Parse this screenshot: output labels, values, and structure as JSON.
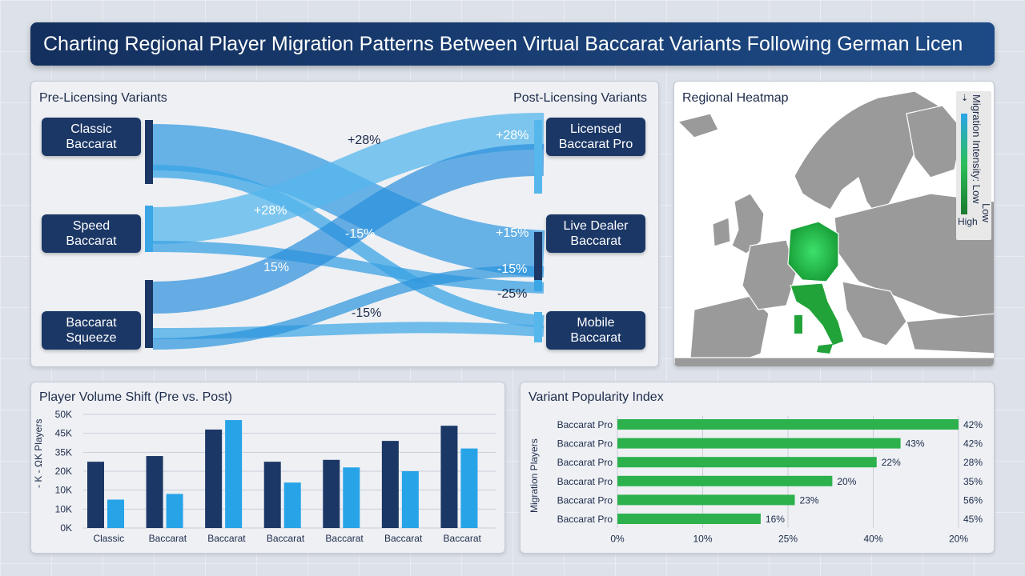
{
  "header": {
    "title": "Charting Regional Player Migration Patterns Between Virtual Baccarat Variants Following German Licen"
  },
  "sankey": {
    "left_title": "Pre-Licensing Variants",
    "right_title": "Post-Licensing Variants",
    "left_nodes": [
      "Classic\nBaccarat",
      "Speed\nBaccarat",
      "Baccarat\nSqueeze"
    ],
    "right_nodes": [
      "Licensed\nBaccarat Pro",
      "Live Dealer\nBaccarat",
      "Mobile\nBaccarat"
    ],
    "flow_labels": [
      "+28%",
      "+28%",
      "+28%",
      "-15%",
      "+15%",
      "15%",
      "-15%",
      "-25%",
      "-15%"
    ]
  },
  "heatmap": {
    "title": "Regional Heatmap",
    "legend_label": "Migration Intensity: Low",
    "legend_low": "Low",
    "legend_high": "High",
    "colors": {
      "low": "#2e9e3e",
      "high": "#2aa4e8",
      "highlight": "#21b33f",
      "land": "#9a9a9a",
      "sea": "#ffffff"
    }
  },
  "chart_data": [
    {
      "type": "bar",
      "title": "Player Volume Shift (Pre vs. Post)",
      "ylabel": "- K - ΩK Players",
      "categories": [
        "Classic",
        "Baccarat",
        "Baccarat",
        "Baccarat",
        "Baccarat",
        "Baccarat",
        "Baccarat"
      ],
      "yticks": [
        "50K",
        "45K",
        "35K",
        "20K",
        "10K",
        "10K",
        "0K"
      ],
      "ylim": [
        0,
        6
      ],
      "series": [
        {
          "values": [
            3.5,
            3.8,
            5.2,
            3.5,
            3.6,
            4.6,
            5.4
          ],
          "color": "#1b3766"
        },
        {
          "values": [
            1.5,
            1.8,
            5.7,
            2.4,
            3.2,
            3.0,
            4.2
          ],
          "color": "#27a3e8"
        }
      ],
      "grid": true
    },
    {
      "type": "bar",
      "orientation": "horizontal",
      "title": "Variant Popularity Index",
      "ylabel": "Migration Players",
      "categories": [
        "Baccarat Pro",
        "Baccarat Pro",
        "Baccarat Pro",
        "Baccarat Pro",
        "Baccarat Pro",
        "Baccarat Pro"
      ],
      "values": [
        100,
        83,
        76,
        63,
        52,
        42
      ],
      "bar_labels": [
        "",
        "43%",
        "22%",
        "20%",
        "23%",
        "16%"
      ],
      "right_labels": [
        "42%",
        "42%",
        "28%",
        "35%",
        "56%",
        "45%"
      ],
      "xticks": [
        "0%",
        "10%",
        "25%",
        "40%",
        "20%"
      ],
      "xlim": [
        0,
        100
      ],
      "grid": true
    }
  ]
}
